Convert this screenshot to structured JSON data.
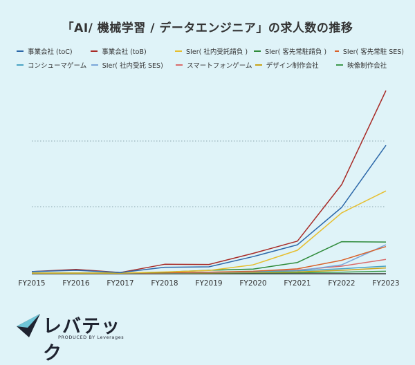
{
  "chart_data": {
    "type": "line",
    "title": "「AI/ 機械学習 / データエンジニア」の求人数の推移",
    "xlabel": "",
    "ylabel": "",
    "categories": [
      "FY2015",
      "FY2016",
      "FY2017",
      "FY2018",
      "FY2019",
      "FY2020",
      "FY2021",
      "FY2022",
      "FY2023"
    ],
    "ylim": [
      0,
      100
    ],
    "grid": "horizontal-dotted",
    "legend_position": "top",
    "y_tick_labels_shown": false,
    "series": [
      {
        "name": "事業会社 (toC)",
        "color": "#2b67a8",
        "values": [
          0.8,
          1.5,
          0.3,
          3.2,
          3.4,
          9,
          15.5,
          36,
          70
        ]
      },
      {
        "name": "事業会社 (toB)",
        "color": "#a82a26",
        "values": [
          0.8,
          2,
          0.3,
          4.8,
          4.7,
          10.8,
          17.5,
          48.5,
          100
        ]
      },
      {
        "name": "SIer( 社内受託請負 )",
        "color": "#e6be2d",
        "values": [
          0,
          0,
          0,
          0.6,
          1.4,
          4.5,
          12.5,
          33,
          45
        ]
      },
      {
        "name": "SIer( 客先常駐請負 )",
        "color": "#2e8b3a",
        "values": [
          0,
          0,
          0,
          0.5,
          1.5,
          2.2,
          5.8,
          17.2,
          17
        ]
      },
      {
        "name": "SIer( 客先常駐 SES)",
        "color": "#d9622b",
        "values": [
          0,
          0,
          0,
          0.2,
          0.5,
          1,
          2.3,
          7,
          14.5
        ]
      },
      {
        "name": "コンシューマゲーム",
        "color": "#4aa3c4",
        "values": [
          0,
          0,
          0,
          0.2,
          0.4,
          0.6,
          1.2,
          2.4,
          3.8
        ]
      },
      {
        "name": "SIer( 社内受託 SES)",
        "color": "#7aa6d9",
        "values": [
          0,
          0,
          0,
          0.1,
          0.3,
          0.7,
          1.2,
          4.5,
          15.5
        ]
      },
      {
        "name": "スマートフォンゲーム",
        "color": "#d96b6b",
        "values": [
          0,
          0,
          0,
          0.1,
          0.4,
          0.8,
          1.6,
          3.8,
          7.5
        ]
      },
      {
        "name": "デザイン制作会社",
        "color": "#c9a417",
        "values": [
          0,
          0,
          0,
          0,
          0.1,
          0.3,
          0.6,
          1.5,
          2.8
        ]
      },
      {
        "name": "映像制作会社",
        "color": "#3f9a4e",
        "values": [
          0,
          0,
          0,
          0,
          0,
          0.1,
          0.2,
          0.5,
          1
        ]
      }
    ]
  },
  "legend_rows": [
    [
      {
        "name": "事業会社 (toC)",
        "color": "#2b67a8"
      },
      {
        "name": "事業会社 (toB)",
        "color": "#a82a26"
      },
      {
        "name": "SIer( 社内受託請負 )",
        "color": "#e6be2d"
      },
      {
        "name": "SIer( 客先常駐請負 )",
        "color": "#2e8b3a"
      },
      {
        "name": "SIer( 客先常駐 SES)",
        "color": "#d9622b"
      }
    ],
    [
      {
        "name": "コンシューマゲーム",
        "color": "#4aa3c4"
      },
      {
        "name": "SIer( 社内受託 SES)",
        "color": "#7aa6d9"
      },
      {
        "name": "スマートフォンゲーム",
        "color": "#d96b6b"
      },
      {
        "name": "デザイン制作会社",
        "color": "#c9a417"
      },
      {
        "name": "映像制作会社",
        "color": "#3f9a4e"
      }
    ]
  ],
  "brand": {
    "name": "レバテック",
    "sub": "PRODUCED BY Leverages"
  }
}
